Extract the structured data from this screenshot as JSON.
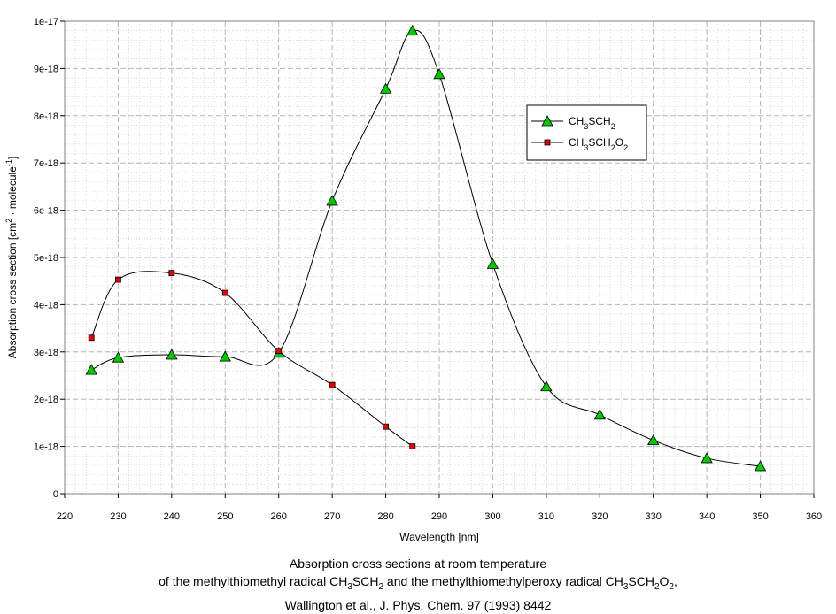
{
  "chart_data": {
    "type": "line",
    "xlabel": "Wavelength [nm]",
    "ylabel_parts": [
      "Absorption cross section [cm",
      "2",
      " · molecule",
      "-1",
      "]"
    ],
    "xlim": [
      220,
      360
    ],
    "ylim": [
      0,
      1e-17
    ],
    "x_ticks": [
      220,
      230,
      240,
      250,
      260,
      270,
      280,
      290,
      300,
      310,
      320,
      330,
      340,
      350,
      360
    ],
    "x_tick_labels": [
      "220",
      "230",
      "240",
      "250",
      "260",
      "270",
      "280",
      "290",
      "300",
      "310",
      "320",
      "330",
      "340",
      "350",
      "360"
    ],
    "y_ticks": [
      0,
      1e-18,
      2e-18,
      3e-18,
      4e-18,
      5e-18,
      6e-18,
      7e-18,
      8e-18,
      9e-18,
      1e-17
    ],
    "y_tick_labels": [
      "0",
      "1e-18",
      "2e-18",
      "3e-18",
      "4e-18",
      "5e-18",
      "6e-18",
      "7e-18",
      "8e-18",
      "9e-18",
      "1e-17"
    ],
    "grid": true,
    "legend_position": "upper-right",
    "series": [
      {
        "name_parts": [
          "CH",
          "3",
          "SCH",
          "2",
          ""
        ],
        "marker": "triangle",
        "color": "#00c800",
        "x": [
          225,
          230,
          240,
          250,
          260,
          270,
          280,
          285,
          290,
          300,
          310,
          320,
          330,
          340,
          350
        ],
        "y": [
          2.62e-18,
          2.88e-18,
          2.94e-18,
          2.9e-18,
          2.98e-18,
          6.2e-18,
          8.57e-18,
          9.8e-18,
          8.88e-18,
          4.86e-18,
          2.27e-18,
          1.67e-18,
          1.13e-18,
          7.5e-19,
          5.8e-19
        ]
      },
      {
        "name_parts": [
          "CH",
          "3",
          "SCH",
          "2",
          "O",
          "2",
          ""
        ],
        "marker": "square",
        "color": "#e00000",
        "x": [
          225,
          230,
          240,
          250,
          260,
          270,
          280,
          285
        ],
        "y": [
          3.3e-18,
          4.53e-18,
          4.67e-18,
          4.25e-18,
          3.02e-18,
          2.3e-18,
          1.42e-18,
          1e-18
        ]
      }
    ]
  },
  "caption": {
    "line1": "Absorption cross sections at room temperature",
    "line2_a": "of the methylthiomethyl radical CH",
    "line2_b": "3",
    "line2_c": "SCH",
    "line2_d": "2",
    "line2_e": " and the methylthiomethylperoxy radical CH",
    "line2_f": "3",
    "line2_g": "SCH",
    "line2_h": "2",
    "line2_i": "O",
    "line2_j": "2",
    "line2_k": ",",
    "line3": "Wallington et al., J. Phys. Chem. 97 (1993) 8442"
  }
}
